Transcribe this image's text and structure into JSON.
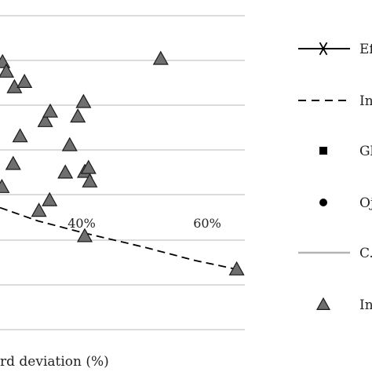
{
  "chart_data": {
    "type": "scatter",
    "title": "",
    "xlabel": "rd deviation (%)",
    "ylabel": "",
    "xlim": [
      27,
      66
    ],
    "ylim": [
      0,
      1
    ],
    "x_ticks": [
      {
        "value": 40,
        "label": "40%"
      },
      {
        "value": 60,
        "label": "60%"
      }
    ],
    "grid": "horizontal",
    "legend_position": "right",
    "legend": [
      {
        "label": "Ef",
        "marker": "asterisk-line",
        "color": "#000000"
      },
      {
        "label": "In",
        "marker": "dashed-line",
        "color": "#000000"
      },
      {
        "label": "Gl",
        "marker": "square",
        "color": "#000000"
      },
      {
        "label": "Oj",
        "marker": "circle",
        "color": "#000000"
      },
      {
        "label": "C.",
        "marker": "gray-line",
        "color": "#b3b3b3"
      },
      {
        "label": "In",
        "marker": "triangle",
        "color": "#6f6f6f"
      }
    ],
    "series": [
      {
        "type": "line",
        "style": "dashed",
        "color": "#000000",
        "points": [
          [
            27,
            0.37
          ],
          [
            33,
            0.33
          ],
          [
            40,
            0.295
          ],
          [
            50,
            0.25
          ],
          [
            58,
            0.21
          ],
          [
            64.7,
            0.183
          ]
        ]
      },
      {
        "type": "scatter",
        "marker": "triangle",
        "color": "#6f6f6f",
        "points": [
          [
            27.4,
            0.812
          ],
          [
            28.0,
            0.783
          ],
          [
            29.3,
            0.736
          ],
          [
            30.9,
            0.752
          ],
          [
            27.3,
            0.433
          ],
          [
            29.1,
            0.503
          ],
          [
            30.2,
            0.587
          ],
          [
            34.2,
            0.633
          ],
          [
            35.0,
            0.662
          ],
          [
            38.1,
            0.56
          ],
          [
            39.4,
            0.647
          ],
          [
            40.3,
            0.691
          ],
          [
            37.4,
            0.477
          ],
          [
            40.5,
            0.479
          ],
          [
            41.1,
            0.491
          ],
          [
            41.3,
            0.45
          ],
          [
            33.2,
            0.361
          ],
          [
            34.9,
            0.393
          ],
          [
            40.5,
            0.284
          ],
          [
            52.6,
            0.822
          ],
          [
            64.7,
            0.183
          ]
        ]
      }
    ]
  }
}
